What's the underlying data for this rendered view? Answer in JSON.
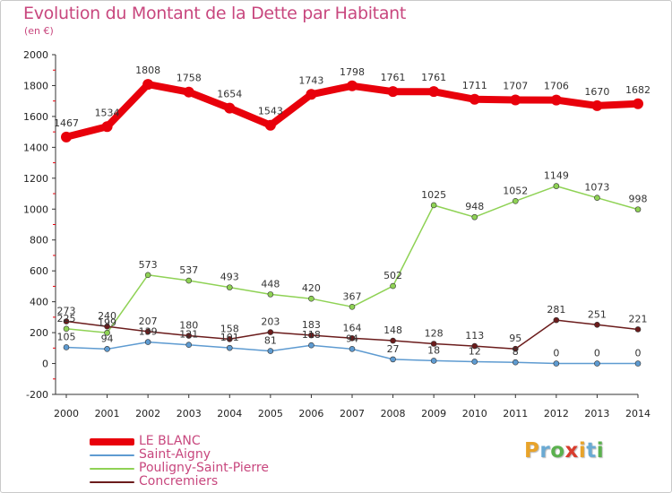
{
  "header": {
    "title": "Evolution du Montant de la Dette par Habitant",
    "subtitle": "(en €)"
  },
  "brand": {
    "letters": [
      "P",
      "r",
      "o",
      "x",
      "i",
      "t",
      "i"
    ],
    "colors": [
      "#e8a32a",
      "#6aaad3",
      "#5bb14e",
      "#d83c2d",
      "#e8a32a",
      "#6aaad3",
      "#5bb14e"
    ]
  },
  "chart_data": {
    "type": "line",
    "title": "Evolution du Montant de la Dette par Habitant",
    "ylabel": "(en €)",
    "xlabel": "",
    "x": [
      "2000",
      "2001",
      "2002",
      "2003",
      "2004",
      "2005",
      "2006",
      "2007",
      "2008",
      "2009",
      "2010",
      "2011",
      "2012",
      "2013",
      "2014"
    ],
    "ylim": [
      -200,
      2000
    ],
    "yticks": [
      -200,
      0,
      200,
      400,
      600,
      800,
      1000,
      1200,
      1400,
      1600,
      1800,
      2000
    ],
    "grid": false,
    "legend_position": "bottom-left",
    "series": [
      {
        "name": "LE BLANC",
        "color": "#e8000b",
        "values": [
          1467,
          1534,
          1808,
          1758,
          1654,
          1543,
          1743,
          1798,
          1761,
          1761,
          1711,
          1707,
          1706,
          1670,
          1682
        ]
      },
      {
        "name": "Saint-Aigny",
        "color": "#5e9bd1",
        "values": [
          105,
          94,
          139,
          121,
          101,
          81,
          118,
          94,
          27,
          18,
          12,
          8,
          0,
          0,
          0
        ]
      },
      {
        "name": "Pouligny-Saint-Pierre",
        "color": "#8fd255",
        "values": [
          225,
          199,
          573,
          537,
          493,
          448,
          420,
          367,
          502,
          1025,
          948,
          1052,
          1149,
          1073,
          998
        ]
      },
      {
        "name": "Concremiers",
        "color": "#6b1c1c",
        "values": [
          273,
          240,
          207,
          180,
          158,
          203,
          183,
          164,
          148,
          128,
          113,
          95,
          281,
          251,
          221
        ]
      }
    ]
  }
}
